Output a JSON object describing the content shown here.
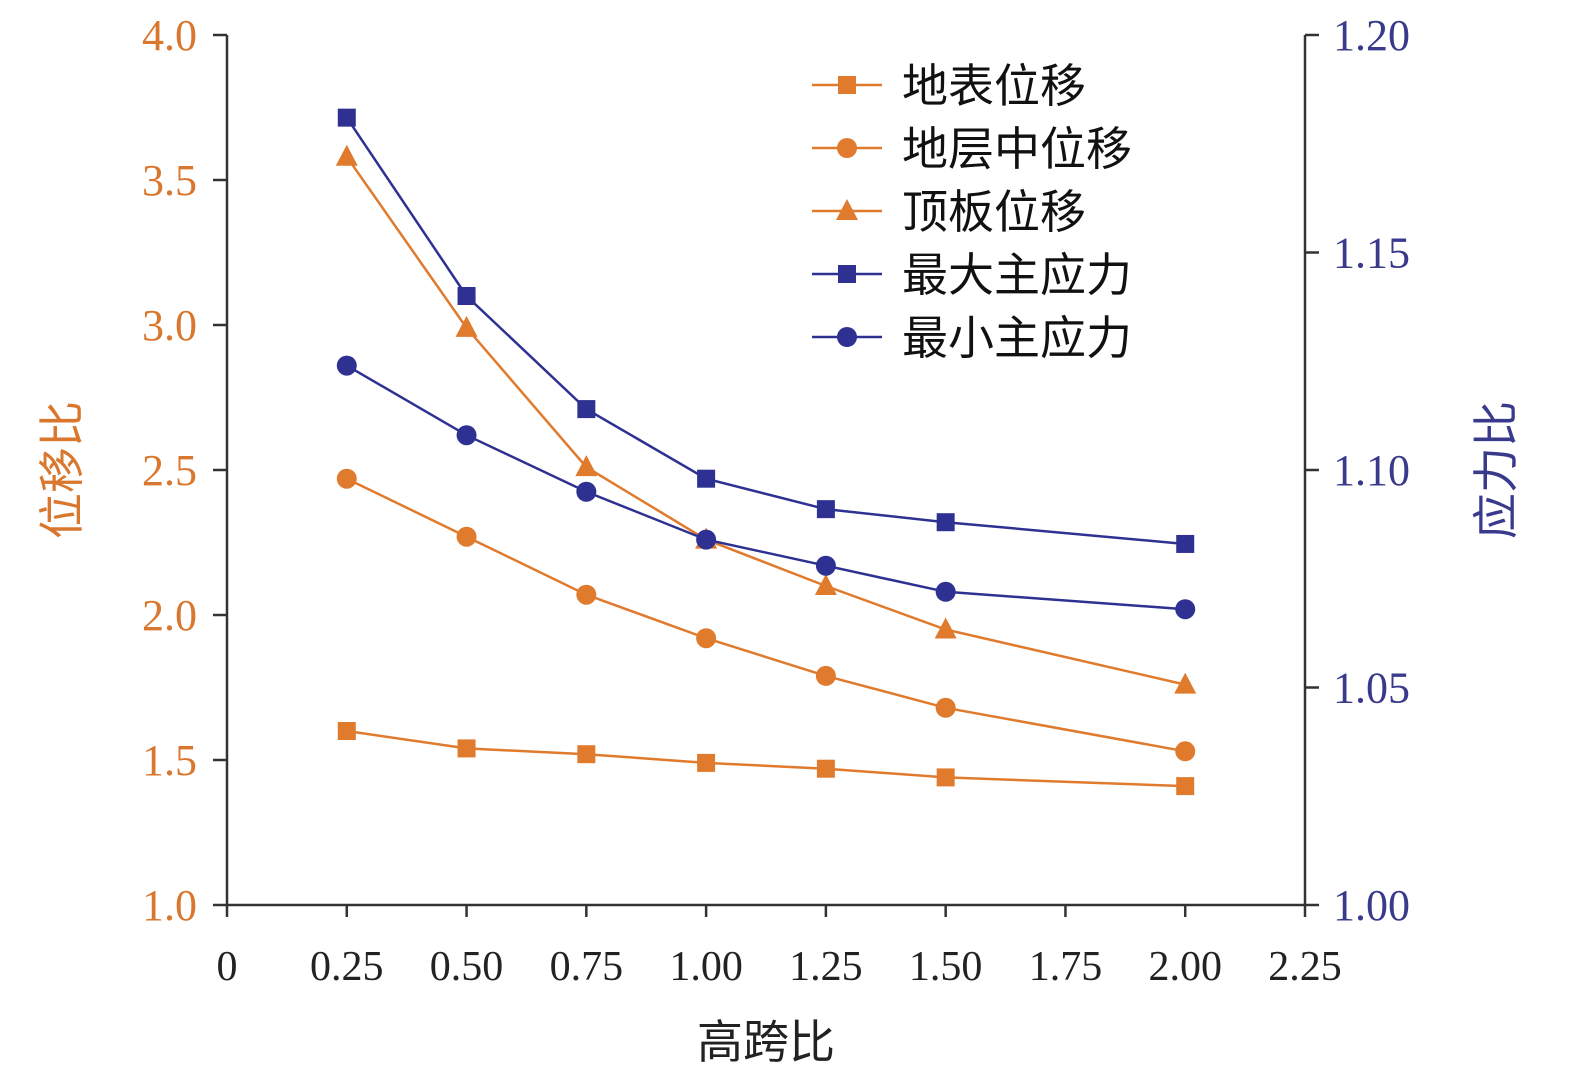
{
  "chart_data": {
    "type": "line",
    "xlabel": "高跨比",
    "ylabel_left": "位移比",
    "ylabel_right": "应力比",
    "x_ticks": [
      "0",
      "0.25",
      "0.50",
      "0.75",
      "1.00",
      "1.25",
      "1.50",
      "1.75",
      "2.00",
      "2.25"
    ],
    "x_tick_values": [
      0,
      0.25,
      0.5,
      0.75,
      1.0,
      1.25,
      1.5,
      1.75,
      2.0,
      2.25
    ],
    "xlim": [
      0,
      2.25
    ],
    "ylim_left": [
      1.0,
      4.0
    ],
    "ylim_right": [
      1.0,
      1.2
    ],
    "y_left_ticks": [
      "1.0",
      "1.5",
      "2.0",
      "2.5",
      "3.0",
      "3.5",
      "4.0"
    ],
    "y_left_tick_values": [
      1.0,
      1.5,
      2.0,
      2.5,
      3.0,
      3.5,
      4.0
    ],
    "y_right_ticks": [
      "1.00",
      "1.05",
      "1.10",
      "1.15",
      "1.20"
    ],
    "y_right_tick_values": [
      1.0,
      1.05,
      1.1,
      1.15,
      1.2
    ],
    "grid": false,
    "legend_position": "top-right",
    "x": [
      0.25,
      0.5,
      0.75,
      1.0,
      1.25,
      1.5,
      2.0
    ],
    "series": [
      {
        "name": "地表位移",
        "axis": "left",
        "marker": "square",
        "color": "#E07B2E",
        "values": [
          1.6,
          1.54,
          1.52,
          1.49,
          1.47,
          1.44,
          1.41
        ]
      },
      {
        "name": "地层中位移",
        "axis": "left",
        "marker": "circle",
        "color": "#E07B2E",
        "values": [
          2.47,
          2.27,
          2.07,
          1.92,
          1.79,
          1.68,
          1.53
        ]
      },
      {
        "name": "顶板位移",
        "axis": "left",
        "marker": "triangle",
        "color": "#E07B2E",
        "values": [
          3.58,
          2.99,
          2.51,
          2.26,
          2.1,
          1.95,
          1.76
        ]
      },
      {
        "name": "最大主应力",
        "axis": "right",
        "marker": "square",
        "color": "#2E3192",
        "values": [
          1.181,
          1.14,
          1.114,
          1.098,
          1.091,
          1.088,
          1.083
        ]
      },
      {
        "name": "最小主应力",
        "axis": "right",
        "marker": "circle",
        "color": "#2E3192",
        "values": [
          1.124,
          1.108,
          1.095,
          1.084,
          1.078,
          1.072,
          1.068
        ]
      }
    ],
    "colors": {
      "left_axis_text": "#D9772E",
      "right_axis_text": "#3A3A8C",
      "axis_line": "#333333"
    }
  }
}
